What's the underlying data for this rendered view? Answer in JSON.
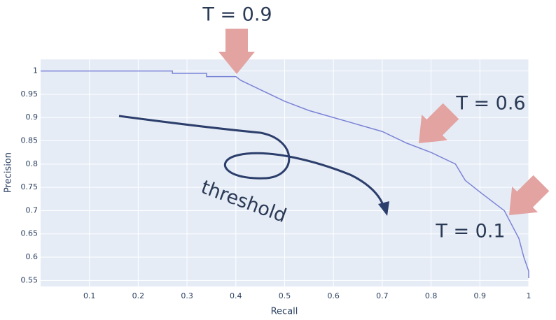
{
  "chart_data": {
    "type": "line",
    "x_label": "Recall",
    "y_label": "Precision",
    "x": [
      0,
      0.27,
      0.27,
      0.34,
      0.34,
      0.4,
      0.41,
      0.45,
      0.5,
      0.55,
      0.6,
      0.65,
      0.7,
      0.75,
      0.8,
      0.85,
      0.87,
      0.9,
      0.95,
      0.98,
      0.99,
      1.0,
      1.0
    ],
    "series": [
      {
        "color": "#7b83d6",
        "values": [
          1.0,
          1.0,
          0.995,
          0.995,
          0.988,
          0.988,
          0.98,
          0.96,
          0.935,
          0.915,
          0.9,
          0.885,
          0.87,
          0.845,
          0.825,
          0.8,
          0.765,
          0.74,
          0.7,
          0.64,
          0.6,
          0.57,
          0.555
        ]
      }
    ],
    "xlim": [
      0,
      1
    ],
    "ylim": [
      0.537,
      1.025
    ],
    "xticks": [
      0.1,
      0.2,
      0.3,
      0.4,
      0.5,
      0.6,
      0.7,
      0.8,
      0.9,
      1
    ],
    "yticks": [
      0.55,
      0.6,
      0.65,
      0.7,
      0.75,
      0.8,
      0.85,
      0.9,
      0.95,
      1
    ],
    "grid": true,
    "annotations": [
      "T = 0.9",
      "T = 0.6",
      "T = 0.1",
      "threshold"
    ]
  }
}
